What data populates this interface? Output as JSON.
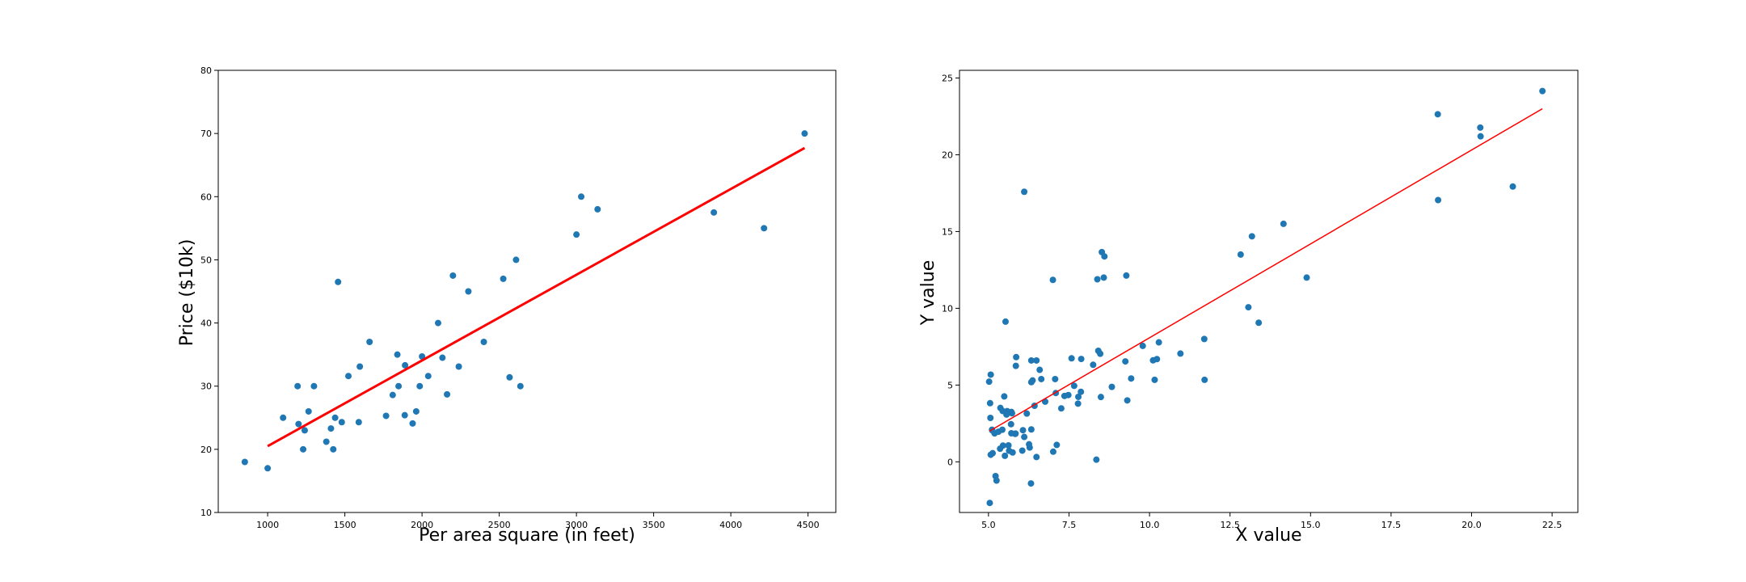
{
  "chart_data": [
    {
      "type": "scatter",
      "title": "",
      "xlabel": "Per area square (in feet)",
      "ylabel": "Price ($10k)",
      "xlim": [
        680,
        4680
      ],
      "ylim": [
        10,
        80
      ],
      "xticks": [
        1000,
        1500,
        2000,
        2500,
        3000,
        3500,
        4000,
        4500
      ],
      "yticks": [
        10,
        20,
        30,
        40,
        50,
        60,
        70,
        80
      ],
      "grid": false,
      "point_color": "#1f77b4",
      "line_color": "#ff0000",
      "points": [
        [
          852,
          18
        ],
        [
          1000,
          17
        ],
        [
          1100,
          25
        ],
        [
          1194,
          30
        ],
        [
          1200,
          24
        ],
        [
          1230,
          20
        ],
        [
          1240,
          23
        ],
        [
          1265,
          26
        ],
        [
          1300,
          30
        ],
        [
          1380,
          21.2
        ],
        [
          1410,
          23.3
        ],
        [
          1425,
          20
        ],
        [
          1437,
          25
        ],
        [
          1456,
          46.5
        ],
        [
          1480,
          24.3
        ],
        [
          1523,
          31.6
        ],
        [
          1590,
          24.3
        ],
        [
          1597,
          33.1
        ],
        [
          1660,
          37
        ],
        [
          1767,
          25.3
        ],
        [
          1810,
          28.6
        ],
        [
          1840,
          35
        ],
        [
          1848,
          30
        ],
        [
          1888,
          25.4
        ],
        [
          1890,
          33.3
        ],
        [
          1939,
          24.1
        ],
        [
          1962,
          26
        ],
        [
          1985,
          30
        ],
        [
          2000,
          34.7
        ],
        [
          2040,
          31.6
        ],
        [
          2104,
          40
        ],
        [
          2132,
          34.5
        ],
        [
          2162,
          28.7
        ],
        [
          2200,
          47.5
        ],
        [
          2238,
          33.1
        ],
        [
          2300,
          45
        ],
        [
          2400,
          37
        ],
        [
          2526,
          47
        ],
        [
          2567,
          31.4
        ],
        [
          2609,
          50
        ],
        [
          2637,
          30
        ],
        [
          3000,
          54
        ],
        [
          3031,
          60
        ],
        [
          3137,
          58
        ],
        [
          3890,
          57.5
        ],
        [
          4215,
          55
        ],
        [
          4478,
          70
        ]
      ],
      "fit_line": {
        "x": [
          1000,
          4478
        ],
        "y": [
          20.5,
          67.7
        ]
      }
    },
    {
      "type": "scatter",
      "title": "",
      "xlabel": "X value",
      "ylabel": "Y value",
      "xlim": [
        4.1,
        23.3
      ],
      "ylim": [
        -3.3,
        25.5
      ],
      "xticks": [
        5.0,
        7.5,
        10.0,
        12.5,
        15.0,
        17.5,
        20.0,
        22.5
      ],
      "ytick_labels": [
        "0",
        "5",
        "10",
        "15",
        "20",
        "25"
      ],
      "yticks": [
        0,
        5,
        10,
        15,
        20,
        25
      ],
      "grid": false,
      "point_color": "#1f77b4",
      "line_color": "#ff0000",
      "points": [
        [
          6.11,
          17.59
        ],
        [
          5.53,
          9.13
        ],
        [
          8.52,
          13.66
        ],
        [
          7.0,
          11.85
        ],
        [
          5.86,
          6.82
        ],
        [
          8.38,
          11.89
        ],
        [
          7.48,
          4.35
        ],
        [
          8.58,
          12.0
        ],
        [
          6.49,
          6.6
        ],
        [
          5.05,
          3.82
        ],
        [
          5.71,
          3.25
        ],
        [
          14.16,
          15.5
        ],
        [
          5.73,
          3.16
        ],
        [
          8.41,
          7.23
        ],
        [
          5.64,
          0.72
        ],
        [
          5.37,
          3.51
        ],
        [
          6.37,
          5.3
        ],
        [
          5.13,
          0.56
        ],
        [
          6.43,
          3.65
        ],
        [
          7.07,
          5.39
        ],
        [
          6.19,
          3.14
        ],
        [
          20.27,
          21.77
        ],
        [
          5.49,
          4.26
        ],
        [
          6.33,
          5.19
        ],
        [
          5.56,
          3.08
        ],
        [
          18.95,
          22.64
        ],
        [
          12.83,
          13.5
        ],
        [
          10.96,
          7.05
        ],
        [
          13.18,
          14.69
        ],
        [
          22.2,
          24.15
        ],
        [
          5.25,
          -1.22
        ],
        [
          6.59,
          5.99
        ],
        [
          9.28,
          12.13
        ],
        [
          5.19,
          1.85
        ],
        [
          9.25,
          6.54
        ],
        [
          5.84,
          1.84
        ],
        [
          7.36,
          4.29
        ],
        [
          13.39,
          9.06
        ],
        [
          5.07,
          0.46
        ],
        [
          5.85,
          6.25
        ],
        [
          5.31,
          1.96
        ],
        [
          5.83,
          1.82
        ],
        [
          8.35,
          0.14
        ],
        [
          6.49,
          0.31
        ],
        [
          5.62,
          1.07
        ],
        [
          5.43,
          2.09
        ],
        [
          5.51,
          0.39
        ],
        [
          8.83,
          4.88
        ],
        [
          7.79,
          4.23
        ],
        [
          6.33,
          6.6
        ],
        [
          11.7,
          8.0
        ],
        [
          5.58,
          3.3
        ],
        [
          5.22,
          -0.93
        ],
        [
          10.11,
          6.61
        ],
        [
          6.33,
          2.11
        ],
        [
          5.7,
          2.45
        ],
        [
          7.87,
          4.56
        ],
        [
          6.64,
          5.39
        ],
        [
          5.04,
          -2.68
        ],
        [
          5.45,
          1.06
        ],
        [
          11.71,
          5.34
        ],
        [
          6.11,
          1.62
        ],
        [
          7.09,
          4.48
        ],
        [
          8.49,
          4.22
        ],
        [
          5.44,
          3.31
        ],
        [
          8.47,
          7.04
        ],
        [
          18.96,
          17.05
        ],
        [
          14.88,
          12.0
        ],
        [
          6.76,
          3.92
        ],
        [
          7.26,
          3.48
        ],
        [
          7.88,
          6.7
        ],
        [
          9.31,
          4.0
        ],
        [
          5.36,
          0.85
        ],
        [
          6.05,
          0.73
        ],
        [
          5.11,
          2.09
        ],
        [
          5.71,
          1.86
        ],
        [
          9.43,
          5.43
        ],
        [
          10.23,
          6.69
        ],
        [
          21.28,
          17.93
        ],
        [
          10.29,
          7.78
        ],
        [
          13.07,
          10.07
        ],
        [
          20.28,
          21.2
        ],
        [
          7.78,
          3.79
        ],
        [
          6.07,
          2.06
        ],
        [
          6.28,
          0.93
        ],
        [
          8.25,
          6.32
        ],
        [
          7.12,
          1.1
        ],
        [
          5.02,
          5.22
        ],
        [
          5.75,
          0.61
        ],
        [
          6.26,
          1.14
        ],
        [
          7.58,
          6.74
        ],
        [
          7.66,
          4.95
        ],
        [
          9.79,
          7.55
        ],
        [
          5.06,
          2.86
        ],
        [
          6.32,
          -1.41
        ],
        [
          7.01,
          0.66
        ],
        [
          8.6,
          13.38
        ],
        [
          5.12,
          2.04
        ],
        [
          5.07,
          5.68
        ],
        [
          10.16,
          5.34
        ]
      ],
      "fit_line": {
        "x": [
          5.03,
          22.2
        ],
        "y": [
          2.0,
          23.0
        ]
      }
    }
  ]
}
